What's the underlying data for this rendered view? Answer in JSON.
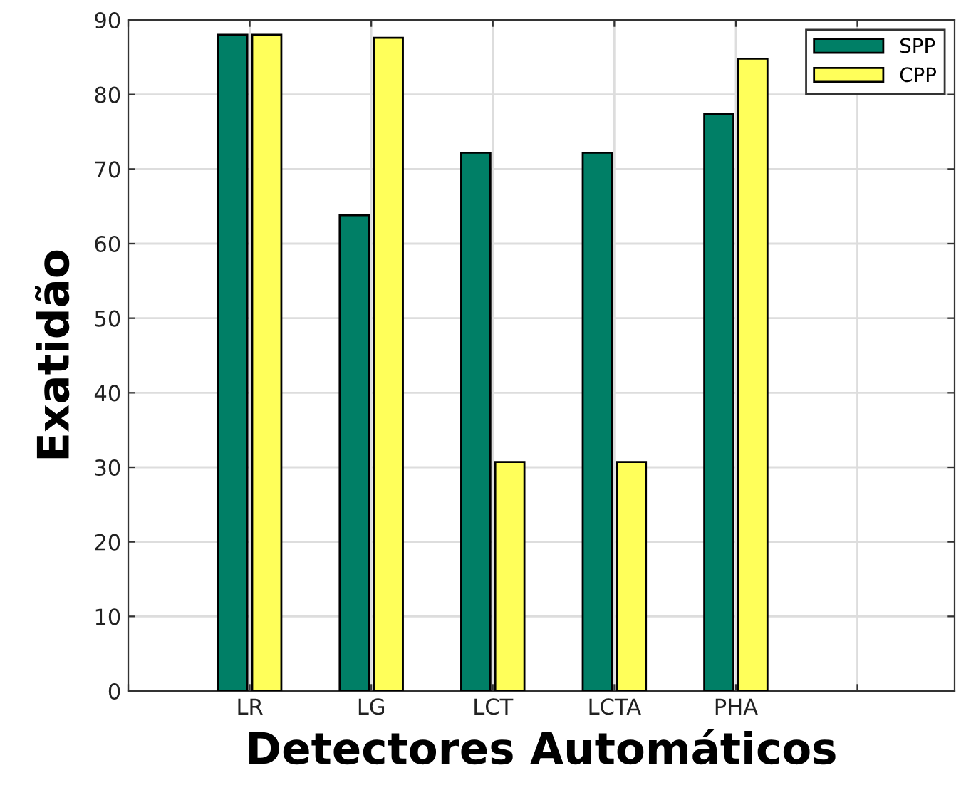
{
  "chart_data": {
    "type": "bar",
    "xlabel": "Detectores Automáticos",
    "ylabel": "Exatidão",
    "categories": [
      null,
      "LR",
      "LG",
      "LCT",
      "LCTA",
      "PHA",
      null
    ],
    "series": [
      {
        "name": "SPP",
        "color": "#007f66",
        "values": [
          null,
          88,
          63.8,
          72.2,
          72.2,
          77.4,
          null
        ]
      },
      {
        "name": "CPP",
        "color": "#ffff5a",
        "values": [
          null,
          88,
          87.6,
          30.7,
          30.7,
          84.8,
          null
        ]
      }
    ],
    "ylim": [
      0,
      90
    ],
    "yticks": [
      0,
      10,
      20,
      30,
      40,
      50,
      60,
      70,
      80,
      90
    ],
    "grid": true,
    "legend": "top right"
  }
}
